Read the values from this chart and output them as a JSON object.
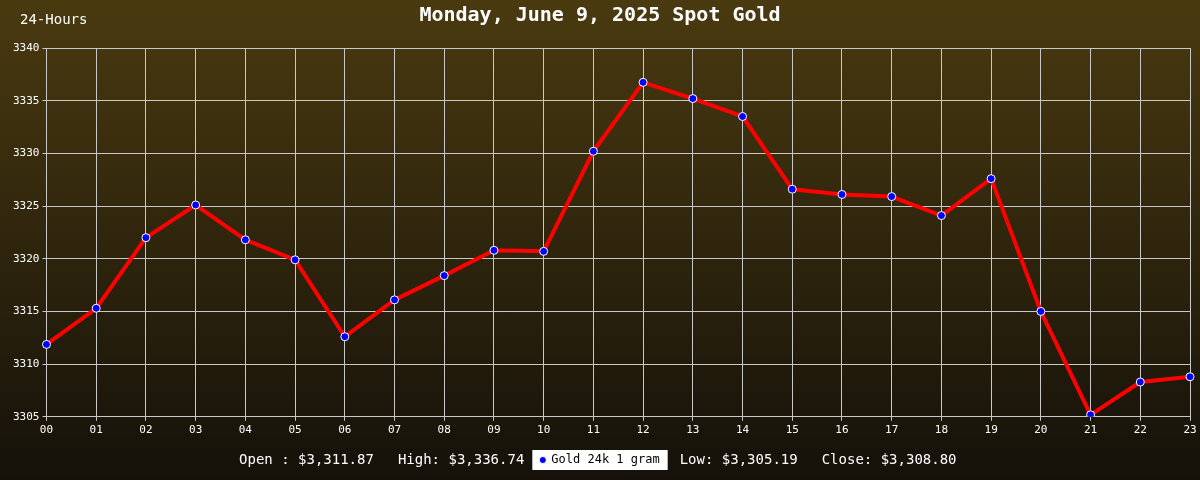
{
  "chart_data": {
    "type": "line",
    "title": "Monday, June 9, 2025 Spot Gold",
    "categories": [
      "00",
      "01",
      "02",
      "03",
      "04",
      "05",
      "06",
      "07",
      "08",
      "09",
      "10",
      "11",
      "12",
      "13",
      "14",
      "15",
      "16",
      "17",
      "18",
      "19",
      "20",
      "21",
      "22",
      "23"
    ],
    "series": [
      {
        "name": "Gold 24k 1 gram",
        "color": "#ff0000",
        "colors": [
          "#0000ff",
          "#0000ff",
          "#0000ff",
          "#0000ff",
          "#0000ff",
          "#0000ff",
          "#0000ff",
          "#0000ff",
          "#0000ff",
          "#0000ff",
          "#0000ff",
          "#0000ff",
          "#0000ff",
          "#0000ff",
          "#0000ff",
          "#0000ff",
          "#0000ff",
          "#0000ff",
          "#0000ff",
          "#0000ff",
          "#0000ff",
          "#0000ff",
          "#0000ff",
          "#0000ff"
        ],
        "values": [
          3311.87,
          3315.3,
          3322.0,
          3325.1,
          3321.8,
          3319.9,
          3312.6,
          3316.1,
          3318.4,
          3320.8,
          3320.7,
          3330.2,
          3336.74,
          3335.2,
          3333.5,
          3326.6,
          3326.1,
          3325.9,
          3324.1,
          3327.6,
          3315.0,
          3305.19,
          3308.3,
          3308.8
        ]
      }
    ],
    "ylim": [
      3305,
      3340
    ],
    "yticks": [
      3305,
      3310,
      3315,
      3320,
      3325,
      3330,
      3335,
      3340
    ],
    "grid": true,
    "legend": "bottom",
    "marker": "circle",
    "line_style": "solid",
    "annotations": [
      "24-Hours",
      "Open : $3,311.87",
      "High: $3,336.74",
      "Low: $3,305.19",
      "Close: $3,308.80"
    ]
  }
}
